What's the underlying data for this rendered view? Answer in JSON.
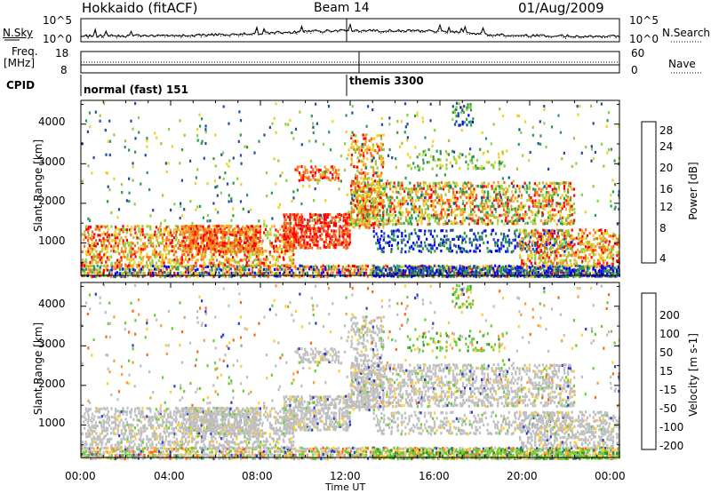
{
  "header": {
    "station": "Hokkaido (fitACF)",
    "beam": "Beam 14",
    "date": "01/Aug/2009"
  },
  "small_panels": {
    "nsky_label": "N.Sky",
    "nsky_ticks": [
      "10^5",
      "10^0"
    ],
    "nsearch_label": "N.Search",
    "nsearch_ticks": [
      "10^5",
      "10^0"
    ],
    "freq_label": "Freq.",
    "freq_unit": "[MHz]",
    "freq_ticks": [
      "18",
      "8"
    ],
    "nave_label": "Nave",
    "nave_ticks": [
      "60",
      "0"
    ],
    "cpid_label": "CPID",
    "cpid_modes": [
      "normal (fast) 151",
      "themis 3300"
    ]
  },
  "colors": {
    "power_scale": [
      "#0000ff",
      "#1e4fa0",
      "#2f9a4a",
      "#8fce3c",
      "#f0d020",
      "#f7a020",
      "#f86818",
      "#ff0000"
    ],
    "velocity_scale": [
      "#1414b4",
      "#2a3ccc",
      "#2c8f2c",
      "#66cc33",
      "#bebebe",
      "#ffcc33",
      "#ff9933",
      "#ff6611",
      "#ff1111"
    ]
  },
  "chart_data": [
    {
      "type": "heatmap",
      "name": "Power",
      "ylabel": "Slant Range [km]",
      "yticks": [
        "1000",
        "2000",
        "3000",
        "4000"
      ],
      "ylim": [
        180,
        4600
      ],
      "xticks": [
        "00:00",
        "04:00",
        "08:00",
        "12:00",
        "16:00",
        "20:00",
        "00:00"
      ],
      "colorbar_label": "Power [dB]",
      "colorbar_ticks": [
        "4",
        "8",
        "12",
        "16",
        "20",
        "24",
        "28"
      ]
    },
    {
      "type": "heatmap",
      "name": "Velocity",
      "ylabel": "Slant Range [km]",
      "yticks": [
        "1000",
        "2000",
        "3000",
        "4000"
      ],
      "ylim": [
        180,
        4600
      ],
      "xticks": [
        "00:00",
        "04:00",
        "08:00",
        "12:00",
        "16:00",
        "20:00",
        "00:00"
      ],
      "xlabel": "Time UT",
      "colorbar_label": "Velocity [m s-1]",
      "colorbar_ticks": [
        "200",
        "100",
        "50",
        "15",
        "-15",
        "-50",
        "-100",
        "-200"
      ]
    }
  ]
}
